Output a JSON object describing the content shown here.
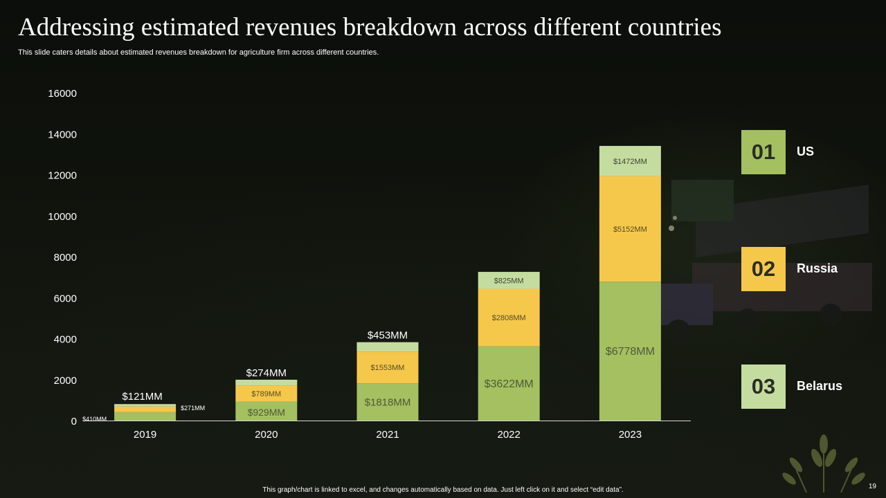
{
  "title": "Addressing estimated revenues breakdown across different countries",
  "subtitle": "This slide caters details about estimated revenues breakdown for agriculture firm across different countries.",
  "footer": "This graph/chart is linked to excel, and changes automatically based on data. Just left click on it and select “edit data”.",
  "page_number": "19",
  "legend": [
    {
      "number": "01",
      "label": "US",
      "color": "#a4c061"
    },
    {
      "number": "02",
      "label": "Russia",
      "color": "#f5c84c"
    },
    {
      "number": "03",
      "label": "Belarus",
      "color": "#c5dca0"
    }
  ],
  "colors": {
    "us": "#a4c061",
    "russia": "#f5c84c",
    "belarus": "#c5dca0"
  },
  "chart_data": {
    "type": "bar",
    "stacked": true,
    "categories": [
      "2019",
      "2020",
      "2021",
      "2022",
      "2023"
    ],
    "series": [
      {
        "name": "US",
        "values": [
          410,
          929,
          1818,
          3622,
          6778
        ],
        "labels": [
          "$410MM",
          "$929MM",
          "$1818MM",
          "$3622MM",
          "$6778MM"
        ]
      },
      {
        "name": "Russia",
        "values": [
          271,
          789,
          1553,
          2808,
          5152
        ],
        "labels": [
          "$271MM",
          "$789MM",
          "$1553MM",
          "$2808MM",
          "$5152MM"
        ]
      },
      {
        "name": "Belarus",
        "values": [
          121,
          274,
          453,
          825,
          1472
        ],
        "labels": [
          "$121MM",
          "$274MM",
          "$453MM",
          "$825MM",
          "$1472MM"
        ]
      }
    ],
    "yticks": [
      "0",
      "2000",
      "4000",
      "6000",
      "8000",
      "10000",
      "12000",
      "14000",
      "16000"
    ],
    "ylim": [
      0,
      16000
    ],
    "grid": false,
    "legend_position": "right"
  }
}
